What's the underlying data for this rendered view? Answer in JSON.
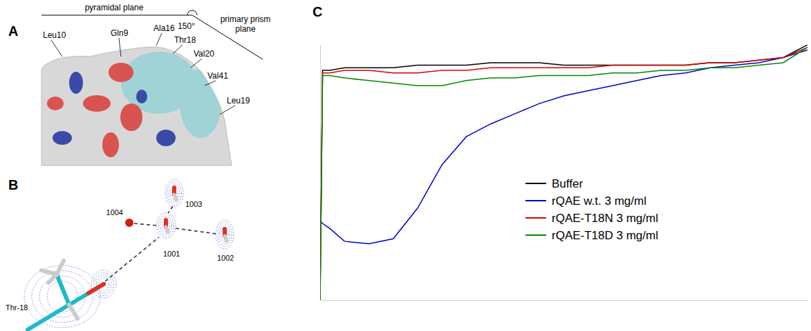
{
  "panels": [
    "A",
    "B",
    "C"
  ],
  "panel_a": {
    "planes": {
      "left": "pyramidal plane",
      "angle": "150°",
      "right": "primary prism plane"
    },
    "residues": [
      "Leu10",
      "Gln9",
      "Ala16",
      "Thr18",
      "Val20",
      "Val41",
      "Leu19"
    ]
  },
  "panel_b": {
    "residue": "Thr-18",
    "waters": [
      "1004",
      "1003",
      "1001",
      "1002"
    ]
  },
  "chart_data": {
    "type": "line",
    "tick_labels": false,
    "legend": "right",
    "xlim": [
      0,
      100
    ],
    "ylim": [
      0,
      100
    ],
    "x": [
      0,
      0.5,
      2,
      5,
      10,
      15,
      20,
      25,
      30,
      35,
      40,
      45,
      50,
      55,
      60,
      65,
      70,
      75,
      80,
      85,
      90,
      95,
      100
    ],
    "series": [
      {
        "name": "Buffer",
        "color": "#000000",
        "values": [
          0,
          90,
          90,
          91,
          91,
          91,
          92,
          92,
          92,
          93,
          93,
          93,
          92,
          92,
          92,
          92,
          92,
          92,
          93,
          93,
          94,
          95,
          100
        ]
      },
      {
        "name": "rQAE w.t. 3 mg/ml",
        "color": "#0000cc",
        "values": [
          31,
          30,
          28,
          23,
          22,
          24,
          36,
          53,
          64,
          69,
          73,
          77,
          80,
          82,
          84,
          86,
          88,
          89,
          91,
          92,
          93,
          95,
          98
        ]
      },
      {
        "name": "rQAE-T18N 3 mg/ml",
        "color": "#dd0000",
        "values": [
          0,
          89,
          89,
          90,
          90,
          89,
          89,
          90,
          90,
          91,
          91,
          91,
          91,
          91,
          92,
          92,
          92,
          92,
          93,
          93,
          94,
          95,
          99
        ]
      },
      {
        "name": "rQAE-T18D 3 mg/ml",
        "color": "#008800",
        "values": [
          0,
          88,
          88,
          87,
          86,
          85,
          84,
          84,
          86,
          87,
          87,
          88,
          88,
          88,
          89,
          89,
          90,
          90,
          91,
          91,
          92,
          93,
          99
        ]
      }
    ]
  }
}
